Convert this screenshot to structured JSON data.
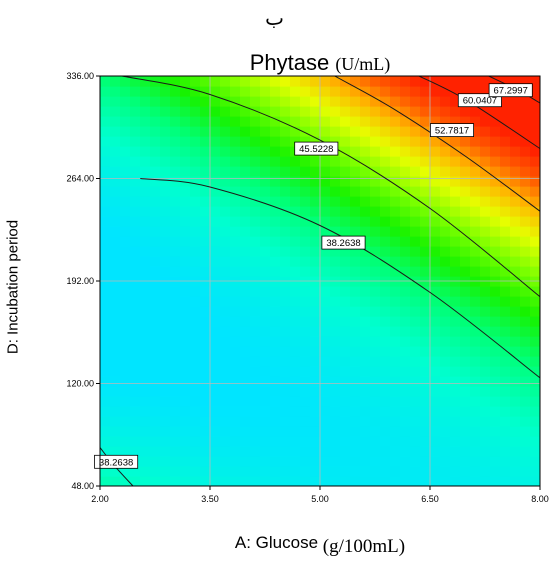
{
  "header": {
    "panel_letter": "ب"
  },
  "chart_data": {
    "type": "heatmap",
    "title": "Phytase",
    "title_unit": "(U/mL)",
    "xlabel": "A: Glucose",
    "xlabel_unit": "(g/100mL)",
    "ylabel": "D: Incubation period",
    "xlim": [
      2.0,
      8.0
    ],
    "ylim": [
      48.0,
      336.0
    ],
    "x_ticks": [
      "2.00",
      "3.50",
      "5.00",
      "6.50",
      "8.00"
    ],
    "y_ticks": [
      "48.00",
      "120.00",
      "192.00",
      "264.00",
      "336.00"
    ],
    "x_tick_values": [
      2.0,
      3.5,
      5.0,
      6.5,
      8.0
    ],
    "y_tick_values": [
      48.0,
      120.0,
      192.0,
      264.0,
      336.0
    ],
    "grid": true,
    "colormap": [
      "#00e5ff",
      "#00ffd0",
      "#00ff7a",
      "#17f200",
      "#7cff00",
      "#e6ff00",
      "#ffb400",
      "#ff5a00",
      "#ff2200"
    ],
    "contour_levels": [
      {
        "label": "38.2638",
        "paths": [
          [
            [
              2.55,
              264
            ],
            [
              3.5,
              258
            ],
            [
              5.0,
              231
            ],
            [
              6.5,
              184
            ],
            [
              8.0,
              124
            ]
          ],
          [
            [
              2.0,
              75
            ],
            [
              2.2,
              62
            ],
            [
              2.45,
              48
            ]
          ]
        ],
        "label_positions": [
          [
            5.32,
            219
          ],
          [
            2.22,
            65
          ]
        ]
      },
      {
        "label": "45.5228",
        "paths": [
          [
            [
              2.3,
              336
            ],
            [
              3.5,
              323
            ],
            [
              5.0,
              291
            ],
            [
              6.5,
              243
            ],
            [
              8.0,
              181
            ]
          ]
        ],
        "label_positions": [
          [
            4.95,
            285
          ]
        ]
      },
      {
        "label": "52.7817",
        "paths": [
          [
            [
              5.2,
              336
            ],
            [
              6.0,
              313
            ],
            [
              7.0,
              279
            ],
            [
              8.0,
              241
            ]
          ]
        ],
        "label_positions": [
          [
            6.8,
            298
          ]
        ]
      },
      {
        "label": "60.0407",
        "paths": [
          [
            [
              6.35,
              336
            ],
            [
              7.0,
              319
            ],
            [
              8.0,
              285
            ]
          ]
        ],
        "label_positions": [
          [
            7.18,
            319
          ]
        ]
      },
      {
        "label": "67.2997",
        "paths": [
          [
            [
              7.3,
              336
            ],
            [
              7.7,
              326
            ],
            [
              8.0,
              317
            ]
          ]
        ],
        "label_positions": [
          [
            7.6,
            326
          ]
        ]
      }
    ]
  }
}
